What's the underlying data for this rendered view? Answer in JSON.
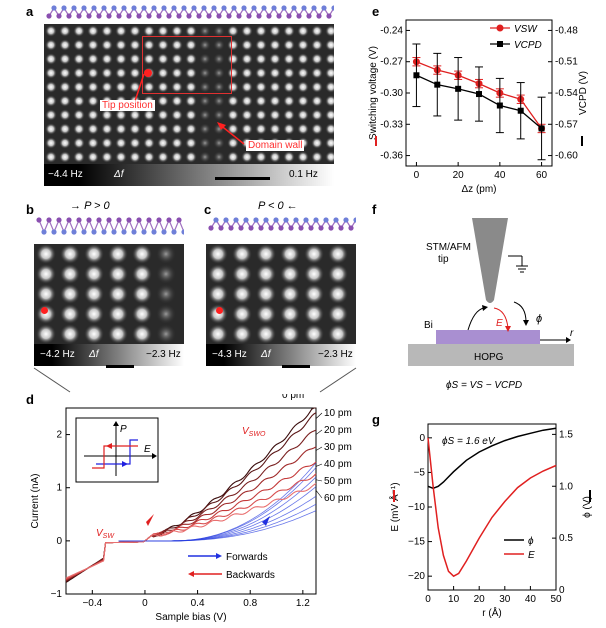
{
  "panels": {
    "a": {
      "label": "a",
      "annotations": {
        "tip": "Tip position",
        "wall": "Domain wall"
      },
      "colorbar": {
        "min": "−4.4 Hz",
        "sym": "Δf",
        "max": "0.1 Hz"
      }
    },
    "b": {
      "label": "b",
      "polarization": "P > 0",
      "colorbar": {
        "min": "−4.2 Hz",
        "sym": "Δf",
        "max": "−2.3 Hz"
      }
    },
    "c": {
      "label": "c",
      "polarization": "P < 0",
      "colorbar": {
        "min": "−4.3 Hz",
        "sym": "Δf",
        "max": "−2.3 Hz"
      }
    },
    "d": {
      "label": "d",
      "vsw": "V",
      "vsw_sub": "SW",
      "vswo_sub": "SWO",
      "forwards": "Forwards",
      "backwards": "Backwards",
      "inset_p": "P",
      "inset_e": "E"
    },
    "e": {
      "label": "e"
    },
    "f": {
      "label": "f",
      "tip": "STM/AFM",
      "tip2": "tip",
      "bi": "Bi",
      "hopg": "HOPG",
      "e_arrow": "E",
      "phi": "ϕ",
      "r": "r",
      "equation": "ϕS = VS − VCPD"
    },
    "g": {
      "label": "g",
      "phi_s": "ϕS = 1.6 eV"
    }
  },
  "chart_data": [
    {
      "panel": "d",
      "type": "line",
      "xlabel": "Sample bias (V)",
      "ylabel": "Current (nA)",
      "xlim": [
        -0.6,
        1.3
      ],
      "ylim": [
        -1,
        2.5
      ],
      "xticks": [
        "−0.4",
        "0",
        "0.4",
        "0.8",
        "1.2"
      ],
      "yticks": [
        "−1",
        "0",
        "1",
        "2"
      ],
      "series": [
        {
          "name": "0 pm",
          "label": "0 pm",
          "amp": 2.45,
          "color": "#3a0c0c"
        },
        {
          "name": "10 pm",
          "label": "10 pm",
          "amp": 2.3,
          "color": "#5a1616"
        },
        {
          "name": "20 pm",
          "label": "20 pm",
          "amp": 2.0,
          "color": "#7a2020"
        },
        {
          "name": "30 pm",
          "label": "30 pm",
          "amp": 1.7,
          "color": "#a02a2a"
        },
        {
          "name": "40 pm",
          "label": "40 pm",
          "amp": 1.4,
          "color": "#c43a3a"
        },
        {
          "name": "50 pm",
          "label": "50 pm",
          "amp": 1.15,
          "color": "#d85050"
        },
        {
          "name": "60 pm",
          "label": "60 pm",
          "amp": 0.95,
          "color": "#e97070"
        }
      ]
    },
    {
      "panel": "e",
      "type": "line",
      "xlabel": "Δz (pm)",
      "ylabel": "Switching voltage (V)",
      "ylabel2": "VCPD (V)",
      "x": [
        0,
        10,
        20,
        30,
        40,
        50,
        60
      ],
      "xticks": [
        "0",
        "20",
        "40",
        "60"
      ],
      "xlim": [
        -5,
        65
      ],
      "ylim": [
        -0.37,
        -0.23
      ],
      "ylim2": [
        -0.61,
        -0.47
      ],
      "yticks": [
        "-0.24",
        "-0.27",
        "-0.30",
        "-0.33",
        "-0.36"
      ],
      "yticks2": [
        "-0.48",
        "-0.51",
        "-0.54",
        "-0.57",
        "-0.60"
      ],
      "series": [
        {
          "name": "VSW",
          "axis": "left",
          "color": "#e02020",
          "values": [
            -0.27,
            -0.278,
            -0.283,
            -0.291,
            -0.3,
            -0.306,
            -0.334
          ],
          "err": [
            0.004,
            0.004,
            0.004,
            0.004,
            0.004,
            0.004,
            0.004
          ]
        },
        {
          "name": "VCPD",
          "axis": "right",
          "color": "#000000",
          "values": [
            -0.523,
            -0.532,
            -0.536,
            -0.541,
            -0.552,
            -0.557,
            -0.574
          ],
          "err": [
            0.03,
            0.03,
            0.03,
            0.026,
            0.026,
            0.027,
            0.03
          ]
        }
      ]
    },
    {
      "panel": "g",
      "type": "line",
      "xlabel": "r (Å)",
      "ylabel": "E (mV Å⁻¹)",
      "ylabel2": "ϕ (V)",
      "xlim": [
        0,
        50
      ],
      "ylim": [
        -22,
        2
      ],
      "ylim2": [
        0,
        1.6
      ],
      "xticks": [
        "0",
        "10",
        "20",
        "30",
        "40",
        "50"
      ],
      "yticks": [
        "0",
        "−5",
        "−10",
        "−15",
        "−20"
      ],
      "yticks2": [
        "0",
        "0.5",
        "1.0",
        "1.5"
      ],
      "series": [
        {
          "name": "ϕ",
          "axis": "right",
          "color": "#000000",
          "x": [
            0,
            2,
            4,
            6,
            8,
            10,
            15,
            20,
            25,
            30,
            35,
            40,
            45,
            50
          ],
          "values": [
            1.0,
            0.98,
            1.0,
            1.04,
            1.09,
            1.14,
            1.25,
            1.33,
            1.39,
            1.44,
            1.48,
            1.51,
            1.54,
            1.56
          ]
        },
        {
          "name": "E",
          "axis": "left",
          "color": "#e02020",
          "x": [
            0,
            2,
            4,
            6,
            8,
            10,
            12,
            15,
            20,
            25,
            30,
            35,
            40,
            45,
            50
          ],
          "values": [
            0,
            -7,
            -13,
            -17,
            -19.3,
            -20,
            -19.6,
            -17.8,
            -14.5,
            -11.5,
            -9.2,
            -7.2,
            -5.8,
            -4.8,
            -4.0
          ]
        }
      ]
    }
  ]
}
